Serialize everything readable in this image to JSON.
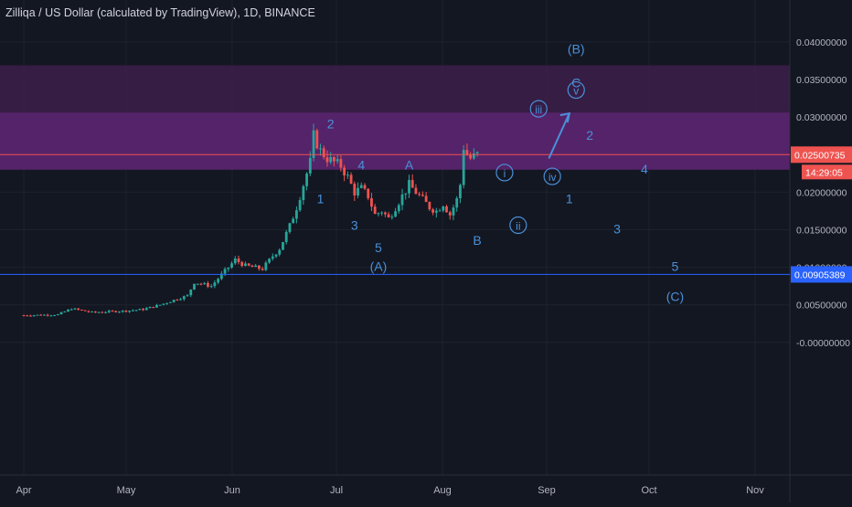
{
  "header": {
    "title": "Zilliqa / US Dollar (calculated by TradingView), 1D, BINANCE"
  },
  "colors": {
    "background": "#131722",
    "grid": "#1e222d",
    "axis_text": "#b2b5be",
    "up": "#26a69a",
    "down": "#ef5350",
    "wave_labels": "#4a90d9",
    "zone_outer": "#3d1f4a",
    "zone_inner": "#5a2570",
    "price_line": "#ef5350",
    "level_line": "#2962ff"
  },
  "chart_data": {
    "type": "candlestick",
    "symbol": "Zilliqa / US Dollar",
    "timeframe": "1D",
    "exchange": "BINANCE",
    "x_ticks": [
      "Apr",
      "May",
      "Jun",
      "Jul",
      "Aug",
      "Sep",
      "Oct",
      "Nov"
    ],
    "y_ticks": [
      "0.04000000",
      "0.03500000",
      "0.03000000",
      "0.02500000",
      "0.02000000",
      "0.01500000",
      "0.01000000",
      "0.00500000",
      "-0.00000000"
    ],
    "ylim": [
      -0.004,
      0.0435
    ],
    "price_label": "0.02500735",
    "countdown_label": "14:29:05",
    "level_label": "0.00905389",
    "current_price": 0.025,
    "level_price": 0.00905,
    "zones": [
      {
        "from": 0.023,
        "to": 0.0369
      },
      {
        "from": 0.023,
        "to": 0.0306
      }
    ],
    "candles_anchor": {
      "start_day": 0,
      "end_day": 133
    },
    "close_path": [
      [
        0,
        0.0036
      ],
      [
        10,
        0.0037
      ],
      [
        14,
        0.0045
      ],
      [
        20,
        0.004
      ],
      [
        30,
        0.0042
      ],
      [
        35,
        0.0044
      ],
      [
        40,
        0.005
      ],
      [
        45,
        0.0058
      ],
      [
        48,
        0.0062
      ],
      [
        50,
        0.008
      ],
      [
        52,
        0.0078
      ],
      [
        55,
        0.0075
      ],
      [
        58,
        0.009
      ],
      [
        62,
        0.011
      ],
      [
        65,
        0.0102
      ],
      [
        70,
        0.0098
      ],
      [
        73,
        0.0115
      ],
      [
        75,
        0.0125
      ],
      [
        78,
        0.0155
      ],
      [
        80,
        0.018
      ],
      [
        82,
        0.021
      ],
      [
        84,
        0.024
      ],
      [
        85,
        0.0275
      ],
      [
        87,
        0.0255
      ],
      [
        89,
        0.0245
      ],
      [
        91,
        0.024
      ],
      [
        93,
        0.0235
      ],
      [
        95,
        0.022
      ],
      [
        97,
        0.02
      ],
      [
        99,
        0.0205
      ],
      [
        101,
        0.0195
      ],
      [
        103,
        0.017
      ],
      [
        105,
        0.0175
      ],
      [
        107,
        0.0165
      ],
      [
        109,
        0.018
      ],
      [
        111,
        0.0195
      ],
      [
        113,
        0.021
      ],
      [
        115,
        0.02
      ],
      [
        117,
        0.019
      ],
      [
        119,
        0.018
      ],
      [
        121,
        0.0175
      ],
      [
        123,
        0.0185
      ],
      [
        125,
        0.017
      ],
      [
        127,
        0.019
      ],
      [
        128,
        0.021
      ],
      [
        129,
        0.026
      ],
      [
        130,
        0.025
      ],
      [
        131,
        0.0245
      ],
      [
        133,
        0.025
      ]
    ],
    "wave_labels": [
      {
        "text": "1",
        "day": 87,
        "price": 0.0185
      },
      {
        "text": "2",
        "day": 90,
        "price": 0.0285
      },
      {
        "text": "3",
        "day": 97,
        "price": 0.015
      },
      {
        "text": "4",
        "day": 99,
        "price": 0.023
      },
      {
        "text": "5",
        "day": 104,
        "price": 0.012
      },
      {
        "text": "(A)",
        "day": 104,
        "price": 0.0095
      },
      {
        "text": "A",
        "day": 113,
        "price": 0.023
      },
      {
        "text": "B",
        "day": 133,
        "price": 0.013
      },
      {
        "text": "C",
        "day": 162,
        "price": 0.034
      },
      {
        "text": "(B)",
        "day": 162,
        "price": 0.0385
      },
      {
        "text": "1",
        "day": 160,
        "price": 0.0185
      },
      {
        "text": "2",
        "day": 166,
        "price": 0.027
      },
      {
        "text": "3",
        "day": 174,
        "price": 0.0145
      },
      {
        "text": "4",
        "day": 182,
        "price": 0.0225
      },
      {
        "text": "5",
        "day": 191,
        "price": 0.0095
      },
      {
        "text": "(C)",
        "day": 191,
        "price": 0.0055
      }
    ],
    "circled_labels": [
      {
        "text": "i",
        "day": 141,
        "price": 0.022
      },
      {
        "text": "ii",
        "day": 145,
        "price": 0.015
      },
      {
        "text": "iii",
        "day": 151,
        "price": 0.0305
      },
      {
        "text": "iv",
        "day": 155,
        "price": 0.0215
      },
      {
        "text": "v",
        "day": 162,
        "price": 0.033
      }
    ],
    "projection_arrow": {
      "from_day": 154,
      "from_price": 0.0245,
      "to_day": 160,
      "to_price": 0.0305
    }
  }
}
